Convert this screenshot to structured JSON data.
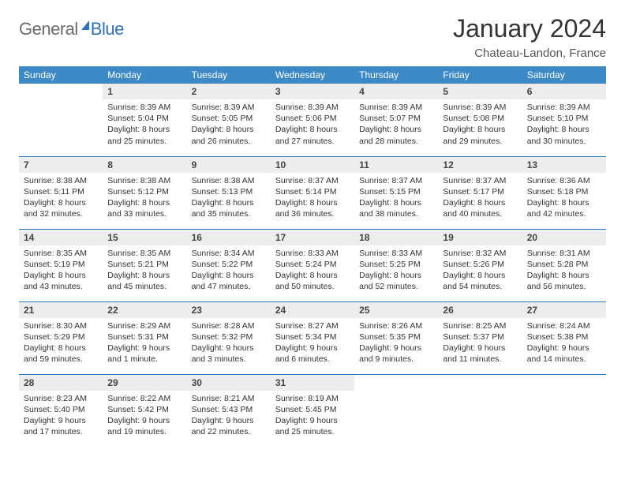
{
  "logo": {
    "general": "General",
    "blue": "Blue"
  },
  "title": {
    "month": "January 2024",
    "location": "Chateau-Landon, France"
  },
  "headers": [
    "Sunday",
    "Monday",
    "Tuesday",
    "Wednesday",
    "Thursday",
    "Friday",
    "Saturday"
  ],
  "colors": {
    "header_bg": "#3c89c6",
    "accent": "#2e72b8",
    "daynum_bg": "#ededed"
  },
  "weeks": [
    [
      null,
      {
        "n": "1",
        "sr": "Sunrise: 8:39 AM",
        "ss": "Sunset: 5:04 PM",
        "d1": "Daylight: 8 hours",
        "d2": "and 25 minutes."
      },
      {
        "n": "2",
        "sr": "Sunrise: 8:39 AM",
        "ss": "Sunset: 5:05 PM",
        "d1": "Daylight: 8 hours",
        "d2": "and 26 minutes."
      },
      {
        "n": "3",
        "sr": "Sunrise: 8:39 AM",
        "ss": "Sunset: 5:06 PM",
        "d1": "Daylight: 8 hours",
        "d2": "and 27 minutes."
      },
      {
        "n": "4",
        "sr": "Sunrise: 8:39 AM",
        "ss": "Sunset: 5:07 PM",
        "d1": "Daylight: 8 hours",
        "d2": "and 28 minutes."
      },
      {
        "n": "5",
        "sr": "Sunrise: 8:39 AM",
        "ss": "Sunset: 5:08 PM",
        "d1": "Daylight: 8 hours",
        "d2": "and 29 minutes."
      },
      {
        "n": "6",
        "sr": "Sunrise: 8:39 AM",
        "ss": "Sunset: 5:10 PM",
        "d1": "Daylight: 8 hours",
        "d2": "and 30 minutes."
      }
    ],
    [
      {
        "n": "7",
        "sr": "Sunrise: 8:38 AM",
        "ss": "Sunset: 5:11 PM",
        "d1": "Daylight: 8 hours",
        "d2": "and 32 minutes."
      },
      {
        "n": "8",
        "sr": "Sunrise: 8:38 AM",
        "ss": "Sunset: 5:12 PM",
        "d1": "Daylight: 8 hours",
        "d2": "and 33 minutes."
      },
      {
        "n": "9",
        "sr": "Sunrise: 8:38 AM",
        "ss": "Sunset: 5:13 PM",
        "d1": "Daylight: 8 hours",
        "d2": "and 35 minutes."
      },
      {
        "n": "10",
        "sr": "Sunrise: 8:37 AM",
        "ss": "Sunset: 5:14 PM",
        "d1": "Daylight: 8 hours",
        "d2": "and 36 minutes."
      },
      {
        "n": "11",
        "sr": "Sunrise: 8:37 AM",
        "ss": "Sunset: 5:15 PM",
        "d1": "Daylight: 8 hours",
        "d2": "and 38 minutes."
      },
      {
        "n": "12",
        "sr": "Sunrise: 8:37 AM",
        "ss": "Sunset: 5:17 PM",
        "d1": "Daylight: 8 hours",
        "d2": "and 40 minutes."
      },
      {
        "n": "13",
        "sr": "Sunrise: 8:36 AM",
        "ss": "Sunset: 5:18 PM",
        "d1": "Daylight: 8 hours",
        "d2": "and 42 minutes."
      }
    ],
    [
      {
        "n": "14",
        "sr": "Sunrise: 8:35 AM",
        "ss": "Sunset: 5:19 PM",
        "d1": "Daylight: 8 hours",
        "d2": "and 43 minutes."
      },
      {
        "n": "15",
        "sr": "Sunrise: 8:35 AM",
        "ss": "Sunset: 5:21 PM",
        "d1": "Daylight: 8 hours",
        "d2": "and 45 minutes."
      },
      {
        "n": "16",
        "sr": "Sunrise: 8:34 AM",
        "ss": "Sunset: 5:22 PM",
        "d1": "Daylight: 8 hours",
        "d2": "and 47 minutes."
      },
      {
        "n": "17",
        "sr": "Sunrise: 8:33 AM",
        "ss": "Sunset: 5:24 PM",
        "d1": "Daylight: 8 hours",
        "d2": "and 50 minutes."
      },
      {
        "n": "18",
        "sr": "Sunrise: 8:33 AM",
        "ss": "Sunset: 5:25 PM",
        "d1": "Daylight: 8 hours",
        "d2": "and 52 minutes."
      },
      {
        "n": "19",
        "sr": "Sunrise: 8:32 AM",
        "ss": "Sunset: 5:26 PM",
        "d1": "Daylight: 8 hours",
        "d2": "and 54 minutes."
      },
      {
        "n": "20",
        "sr": "Sunrise: 8:31 AM",
        "ss": "Sunset: 5:28 PM",
        "d1": "Daylight: 8 hours",
        "d2": "and 56 minutes."
      }
    ],
    [
      {
        "n": "21",
        "sr": "Sunrise: 8:30 AM",
        "ss": "Sunset: 5:29 PM",
        "d1": "Daylight: 8 hours",
        "d2": "and 59 minutes."
      },
      {
        "n": "22",
        "sr": "Sunrise: 8:29 AM",
        "ss": "Sunset: 5:31 PM",
        "d1": "Daylight: 9 hours",
        "d2": "and 1 minute."
      },
      {
        "n": "23",
        "sr": "Sunrise: 8:28 AM",
        "ss": "Sunset: 5:32 PM",
        "d1": "Daylight: 9 hours",
        "d2": "and 3 minutes."
      },
      {
        "n": "24",
        "sr": "Sunrise: 8:27 AM",
        "ss": "Sunset: 5:34 PM",
        "d1": "Daylight: 9 hours",
        "d2": "and 6 minutes."
      },
      {
        "n": "25",
        "sr": "Sunrise: 8:26 AM",
        "ss": "Sunset: 5:35 PM",
        "d1": "Daylight: 9 hours",
        "d2": "and 9 minutes."
      },
      {
        "n": "26",
        "sr": "Sunrise: 8:25 AM",
        "ss": "Sunset: 5:37 PM",
        "d1": "Daylight: 9 hours",
        "d2": "and 11 minutes."
      },
      {
        "n": "27",
        "sr": "Sunrise: 8:24 AM",
        "ss": "Sunset: 5:38 PM",
        "d1": "Daylight: 9 hours",
        "d2": "and 14 minutes."
      }
    ],
    [
      {
        "n": "28",
        "sr": "Sunrise: 8:23 AM",
        "ss": "Sunset: 5:40 PM",
        "d1": "Daylight: 9 hours",
        "d2": "and 17 minutes."
      },
      {
        "n": "29",
        "sr": "Sunrise: 8:22 AM",
        "ss": "Sunset: 5:42 PM",
        "d1": "Daylight: 9 hours",
        "d2": "and 19 minutes."
      },
      {
        "n": "30",
        "sr": "Sunrise: 8:21 AM",
        "ss": "Sunset: 5:43 PM",
        "d1": "Daylight: 9 hours",
        "d2": "and 22 minutes."
      },
      {
        "n": "31",
        "sr": "Sunrise: 8:19 AM",
        "ss": "Sunset: 5:45 PM",
        "d1": "Daylight: 9 hours",
        "d2": "and 25 minutes."
      },
      null,
      null,
      null
    ]
  ]
}
